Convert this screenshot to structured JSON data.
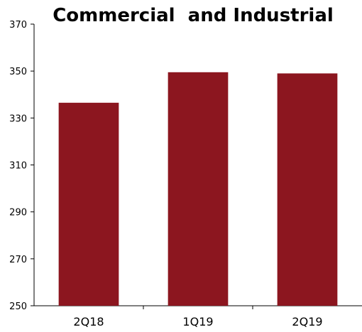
{
  "chart_data": {
    "type": "bar",
    "title": "Commercial  and Industrial",
    "categories": [
      "2Q18",
      "1Q19",
      "2Q19"
    ],
    "values": [
      336.5,
      349.5,
      349
    ],
    "xlabel": "",
    "ylabel": "",
    "ylim": [
      250,
      370
    ],
    "yticks": [
      "250",
      "270",
      "290",
      "310",
      "330",
      "350",
      "370"
    ],
    "grid": false,
    "legend": "none",
    "bar_color": "#8c161f"
  }
}
